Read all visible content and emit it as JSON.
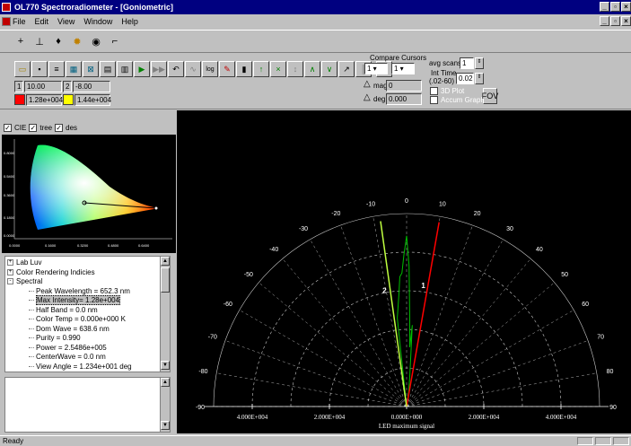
{
  "window": {
    "title": "OL770 Spectroradiometer - [Goniometric]"
  },
  "menu": [
    "File",
    "Edit",
    "View",
    "Window",
    "Help"
  ],
  "cursors": {
    "c1_index": "1",
    "c1_pos": "10.00",
    "c1_value": "1.28e+004",
    "c2_index": "2",
    "c2_pos": "-8.00",
    "c2_value": "1.44e+004",
    "c1_color": "#ff0000",
    "c2_color": "#ffff00"
  },
  "compare": {
    "label": "Compare Cursors",
    "sel1": "1",
    "sel2": "1",
    "mag_label": "mag",
    "mag_value": "0",
    "deg_label": "deg",
    "deg_value": "0.000"
  },
  "scan": {
    "avg_label": "avg scans",
    "avg_value": "1",
    "int_label": "Int Time",
    "int_range": "(.02-60)",
    "int_value": "0.02",
    "plot3d": "3D Plot",
    "accum": "Accum Graph",
    "fov": "FOV"
  },
  "checks": [
    {
      "label": "CIE"
    },
    {
      "label": "tree"
    },
    {
      "label": "des"
    }
  ],
  "cie_ticks": {
    "x": [
      "0.0000",
      "0.1600",
      "0.3200",
      "0.4800",
      "0.6400"
    ],
    "y": [
      "0.8000",
      "0.5400",
      "0.3600",
      "0.1800",
      "0.0000"
    ]
  },
  "tree": [
    {
      "text": "Lab Luv",
      "indent": 0,
      "sign": "+"
    },
    {
      "text": "Color Rendering Indicies",
      "indent": 0,
      "sign": "+"
    },
    {
      "text": "Spectral",
      "indent": 0,
      "sign": "-"
    },
    {
      "text": "Peak Wavelength = 652.3 nm",
      "indent": 1
    },
    {
      "text": "Max Intensity= 1.28e+004",
      "indent": 1,
      "selected": true
    },
    {
      "text": "Half Band = 0.0 nm",
      "indent": 1
    },
    {
      "text": "Color Temp = 0.000e+000 K",
      "indent": 1
    },
    {
      "text": "Dom Wave = 638.6 nm",
      "indent": 1
    },
    {
      "text": "Purity = 0.990",
      "indent": 1
    },
    {
      "text": "Power = 2.5486e+005",
      "indent": 1
    },
    {
      "text": "CenterWave = 0.0 nm",
      "indent": 1
    },
    {
      "text": "View Angle = 1.234e+001 deg",
      "indent": 1
    }
  ],
  "polar": {
    "angles": [
      "-90",
      "-80",
      "-70",
      "-60",
      "-50",
      "-40",
      "-30",
      "-20",
      "-10",
      "0",
      "10",
      "20",
      "30",
      "40",
      "50",
      "60",
      "70",
      "80",
      "90"
    ],
    "xticks": [
      "4.000E+004",
      "2.000E+004",
      "0.000E+000",
      "2.000E+004",
      "4.000E+004"
    ],
    "xlabel": "LED maximum signal",
    "cursor1_angle": 10,
    "cursor2_angle": -8,
    "cursor1_label": "1",
    "cursor2_label": "2",
    "grid_color": "#ffffff",
    "signal_color": "#00c000",
    "cursor1_color": "#ff0000",
    "cursor2_color": "#c0ff40"
  },
  "status": {
    "text": "Ready"
  }
}
